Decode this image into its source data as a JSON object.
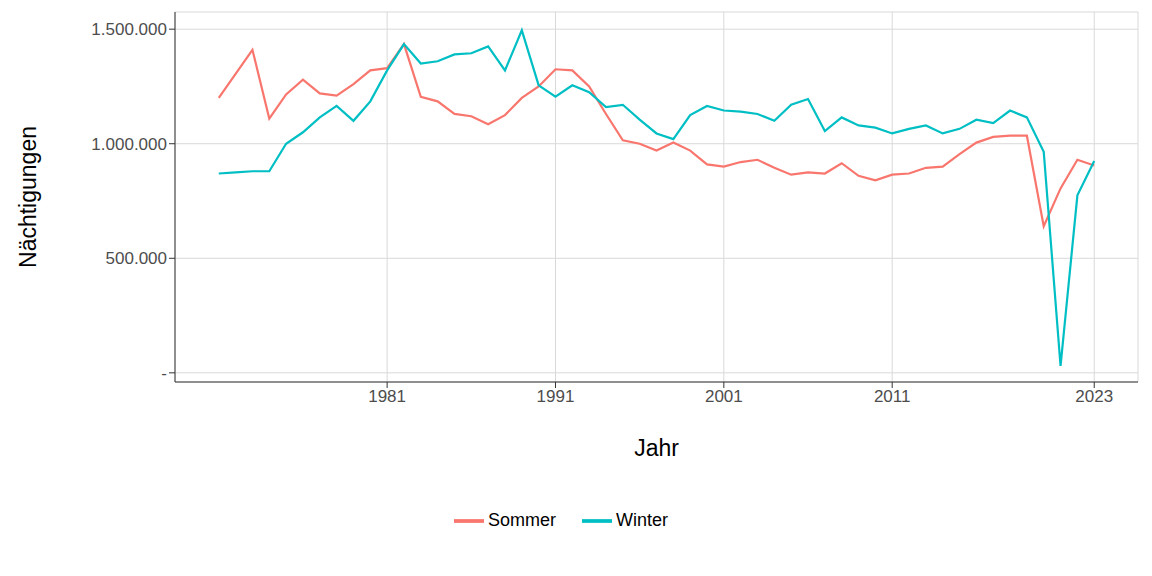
{
  "chart_data": {
    "type": "line",
    "x_label": "Jahr",
    "y_label": "Nächtigungen",
    "x": [
      1971,
      1972,
      1973,
      1974,
      1975,
      1976,
      1977,
      1978,
      1979,
      1980,
      1981,
      1982,
      1983,
      1984,
      1985,
      1986,
      1987,
      1988,
      1989,
      1990,
      1991,
      1992,
      1993,
      1994,
      1995,
      1996,
      1997,
      1998,
      1999,
      2000,
      2001,
      2002,
      2003,
      2004,
      2005,
      2006,
      2007,
      2008,
      2009,
      2010,
      2011,
      2012,
      2013,
      2014,
      2015,
      2016,
      2017,
      2018,
      2019,
      2020,
      2021,
      2022,
      2023
    ],
    "series": [
      {
        "name": "Sommer",
        "color": "#F8766D",
        "values": [
          1200000,
          1305000,
          1410000,
          1110000,
          1215000,
          1280000,
          1220000,
          1210000,
          1260000,
          1320000,
          1330000,
          1435000,
          1205000,
          1185000,
          1130000,
          1120000,
          1085000,
          1125000,
          1200000,
          1250000,
          1325000,
          1320000,
          1250000,
          1130000,
          1015000,
          1000000,
          970000,
          1005000,
          970000,
          910000,
          900000,
          920000,
          930000,
          895000,
          865000,
          875000,
          870000,
          915000,
          860000,
          840000,
          865000,
          870000,
          895000,
          900000,
          955000,
          1005000,
          1030000,
          1035000,
          1035000,
          640000,
          805000,
          930000,
          905000
        ]
      },
      {
        "name": "Winter",
        "color": "#00BFC4",
        "values": [
          870000,
          875000,
          880000,
          880000,
          1000000,
          1050000,
          1115000,
          1165000,
          1100000,
          1185000,
          1320000,
          1435000,
          1350000,
          1360000,
          1390000,
          1395000,
          1425000,
          1320000,
          1495000,
          1255000,
          1205000,
          1255000,
          1225000,
          1160000,
          1170000,
          1105000,
          1045000,
          1020000,
          1125000,
          1165000,
          1145000,
          1140000,
          1130000,
          1100000,
          1170000,
          1195000,
          1055000,
          1115000,
          1080000,
          1070000,
          1045000,
          1065000,
          1080000,
          1045000,
          1065000,
          1105000,
          1090000,
          1145000,
          1115000,
          965000,
          30000,
          775000,
          925000
        ]
      }
    ],
    "xlim": [
      1968.4,
      2025.6
    ],
    "xticks": [
      1981,
      1991,
      2001,
      2011,
      2023
    ],
    "ylim": [
      -40000,
      1575000
    ],
    "yticks": [
      {
        "value": 0,
        "label": "-"
      },
      {
        "value": 500000,
        "label": "500.000"
      },
      {
        "value": 1000000,
        "label": "1.000.000"
      },
      {
        "value": 1500000,
        "label": "1.500.000"
      }
    ],
    "grid": true,
    "legend": "bottom"
  }
}
